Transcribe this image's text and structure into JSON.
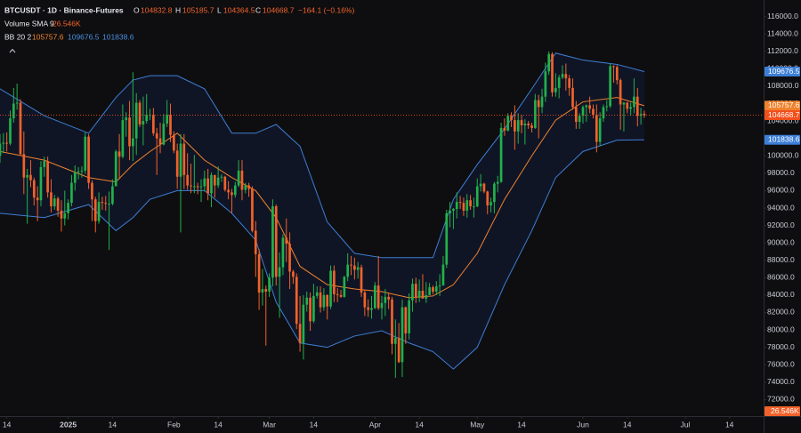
{
  "chart_data": {
    "type": "candlestick",
    "title": "BTCUSDT · 1D · Binance-Futures",
    "legend": {
      "o": "O",
      "h": "H",
      "l": "L",
      "c": "C",
      "change": "−164.1 (−0.16%)",
      "volume_label": "Volume SMA 9",
      "volume_sma": "26.546K",
      "bb_label": "BB 20 2"
    },
    "up_color": "#22b14c",
    "down_color": "#f2622b",
    "last_color": "#f24f1c",
    "x": [
      "2024-12-12",
      "2024-12-13",
      "2024-12-14",
      "2024-12-15",
      "2024-12-16",
      "2024-12-17",
      "2024-12-18",
      "2024-12-19",
      "2024-12-20",
      "2024-12-21",
      "2024-12-22",
      "2024-12-23",
      "2024-12-24",
      "2024-12-25",
      "2024-12-26",
      "2024-12-27",
      "2024-12-28",
      "2024-12-29",
      "2024-12-30",
      "2024-12-31",
      "2025-01-01",
      "2025-01-02",
      "2025-01-03",
      "2025-01-04",
      "2025-01-05",
      "2025-01-06",
      "2025-01-07",
      "2025-01-08",
      "2025-01-09",
      "2025-01-10",
      "2025-01-11",
      "2025-01-12",
      "2025-01-13",
      "2025-01-14",
      "2025-01-15",
      "2025-01-16",
      "2025-01-17",
      "2025-01-18",
      "2025-01-19",
      "2025-01-20",
      "2025-01-21",
      "2025-01-22",
      "2025-01-23",
      "2025-01-24",
      "2025-01-25",
      "2025-01-26",
      "2025-01-27",
      "2025-01-28",
      "2025-01-29",
      "2025-01-30",
      "2025-01-31",
      "2025-02-01",
      "2025-02-02",
      "2025-02-03",
      "2025-02-04",
      "2025-02-05",
      "2025-02-06",
      "2025-02-07",
      "2025-02-08",
      "2025-02-09",
      "2025-02-10",
      "2025-02-11",
      "2025-02-12",
      "2025-02-13",
      "2025-02-14",
      "2025-02-15",
      "2025-02-16",
      "2025-02-17",
      "2025-02-18",
      "2025-02-19",
      "2025-02-20",
      "2025-02-21",
      "2025-02-22",
      "2025-02-23",
      "2025-02-24",
      "2025-02-25",
      "2025-02-26",
      "2025-02-27",
      "2025-02-28",
      "2025-03-01",
      "2025-03-02",
      "2025-03-03",
      "2025-03-04",
      "2025-03-05",
      "2025-03-06",
      "2025-03-07",
      "2025-03-08",
      "2025-03-09",
      "2025-03-10",
      "2025-03-11",
      "2025-03-12",
      "2025-03-13",
      "2025-03-14",
      "2025-03-15",
      "2025-03-16",
      "2025-03-17",
      "2025-03-18",
      "2025-03-19",
      "2025-03-20",
      "2025-03-21",
      "2025-03-22",
      "2025-03-23",
      "2025-03-24",
      "2025-03-25",
      "2025-03-26",
      "2025-03-27",
      "2025-03-28",
      "2025-03-29",
      "2025-03-30",
      "2025-03-31",
      "2025-04-01",
      "2025-04-02",
      "2025-04-03",
      "2025-04-04",
      "2025-04-05",
      "2025-04-06",
      "2025-04-07",
      "2025-04-08",
      "2025-04-09",
      "2025-04-10",
      "2025-04-11",
      "2025-04-12",
      "2025-04-13",
      "2025-04-14",
      "2025-04-15",
      "2025-04-16",
      "2025-04-17",
      "2025-04-18",
      "2025-04-19",
      "2025-04-20",
      "2025-04-21",
      "2025-04-22",
      "2025-04-23",
      "2025-04-24",
      "2025-04-25",
      "2025-04-26",
      "2025-04-27",
      "2025-04-28",
      "2025-04-29",
      "2025-04-30",
      "2025-05-01",
      "2025-05-02",
      "2025-05-03",
      "2025-05-04",
      "2025-05-05",
      "2025-05-06",
      "2025-05-07",
      "2025-05-08",
      "2025-05-09",
      "2025-05-10",
      "2025-05-11",
      "2025-05-12",
      "2025-05-13",
      "2025-05-14",
      "2025-05-15",
      "2025-05-16",
      "2025-05-17",
      "2025-05-18",
      "2025-05-19",
      "2025-05-20",
      "2025-05-21",
      "2025-05-22",
      "2025-05-23",
      "2025-05-24",
      "2025-05-25",
      "2025-05-26",
      "2025-05-27",
      "2025-05-28",
      "2025-05-29",
      "2025-05-30",
      "2025-05-31",
      "2025-06-01",
      "2025-06-02",
      "2025-06-03",
      "2025-06-04",
      "2025-06-05",
      "2025-06-06",
      "2025-06-07",
      "2025-06-08",
      "2025-06-09",
      "2025-06-10",
      "2025-06-11",
      "2025-06-12",
      "2025-06-13",
      "2025-06-14",
      "2025-06-15",
      "2025-06-16",
      "2025-06-17",
      "2025-06-18",
      "2025-06-19"
    ],
    "open": [
      100000,
      101400,
      101500,
      101400,
      104300,
      106000,
      106100,
      100200,
      97500,
      97800,
      97200,
      95200,
      94900,
      98700,
      99400,
      95800,
      94200,
      95100,
      93700,
      92800,
      93400,
      94600,
      96900,
      98100,
      98200,
      98300,
      102200,
      96900,
      95000,
      92500,
      94700,
      94600,
      94500,
      94500,
      96500,
      100500,
      99900,
      104100,
      104400,
      101100,
      102000,
      106100,
      103600,
      104000,
      104700,
      104700,
      102600,
      102000,
      101300,
      103700,
      104700,
      102400,
      100600,
      97600,
      101400,
      97800,
      96600,
      96500,
      96500,
      96400,
      96500,
      97400,
      95700,
      97800,
      96600,
      97500,
      97600,
      96100,
      95800,
      95500,
      96600,
      98300,
      96100,
      96600,
      96200,
      91400,
      88700,
      84300,
      84700,
      84400,
      86000,
      94200,
      86100,
      87200,
      90600,
      89900,
      86700,
      86100,
      80700,
      78500,
      82900,
      83700,
      81000,
      83900,
      84300,
      82600,
      84000,
      82700,
      86800,
      84100,
      84000,
      83800,
      86100,
      87500,
      87400,
      86900,
      87200,
      84300,
      82600,
      82300,
      82500,
      85100,
      82500,
      83100,
      83800,
      83500,
      78400,
      79100,
      76300,
      82600,
      79600,
      83400,
      85300,
      83700,
      84500,
      83600,
      84000,
      84900,
      84400,
      85000,
      85100,
      87500,
      93400,
      93700,
      93900,
      94700,
      94600,
      93700,
      94900,
      94200,
      94200,
      96500,
      96800,
      95900,
      94300,
      94700,
      96800,
      97000,
      103200,
      102900,
      104600,
      104100,
      102800,
      104100,
      103500,
      103700,
      103500,
      103200,
      106400,
      105600,
      106800,
      109700,
      111700,
      107300,
      107800,
      109000,
      109400,
      108900,
      107800,
      105600,
      103900,
      104600,
      105600,
      105800,
      105400,
      104700,
      101600,
      104300,
      105600,
      105700,
      110300,
      110200,
      108700,
      105900,
      106100,
      105400,
      105600,
      106800,
      104600,
      104832.8
    ],
    "high": [
      102500,
      102600,
      102700,
      105200,
      107800,
      108300,
      106500,
      102800,
      98500,
      99500,
      97500,
      96500,
      99400,
      99900,
      99900,
      97300,
      95500,
      95300,
      94900,
      96000,
      95000,
      97800,
      98900,
      98700,
      98800,
      102700,
      102500,
      97200,
      95300,
      95800,
      95300,
      95400,
      95900,
      97300,
      100700,
      102500,
      105900,
      105000,
      106300,
      109600,
      107200,
      106400,
      106800,
      107100,
      105400,
      105500,
      103200,
      103800,
      104800,
      106400,
      106000,
      102800,
      101400,
      102500,
      102500,
      100300,
      99100,
      100100,
      96900,
      97300,
      98300,
      98500,
      98100,
      97800,
      98800,
      97900,
      97700,
      97100,
      96200,
      97000,
      99500,
      99500,
      96900,
      96900,
      96500,
      92500,
      89300,
      87000,
      85100,
      86500,
      95000,
      94400,
      88900,
      91000,
      92800,
      91200,
      86900,
      86500,
      83900,
      84000,
      84400,
      84300,
      85300,
      85000,
      85000,
      84800,
      84100,
      87400,
      87400,
      84800,
      84600,
      86200,
      88800,
      88500,
      88300,
      87800,
      87500,
      84600,
      83500,
      83900,
      85500,
      88500,
      83900,
      84700,
      84200,
      83800,
      81200,
      80800,
      83500,
      82700,
      84200,
      85900,
      86000,
      85800,
      86400,
      85500,
      85400,
      85100,
      85600,
      86400,
      88500,
      93800,
      94700,
      94000,
      95800,
      95400,
      95200,
      95600,
      95500,
      95200,
      97400,
      97900,
      96900,
      96000,
      95200,
      97000,
      97700,
      103800,
      104300,
      104900,
      105000,
      105800,
      104900,
      104700,
      104200,
      104000,
      103800,
      107100,
      107000,
      107700,
      110700,
      112000,
      111900,
      109500,
      109300,
      110400,
      110600,
      109300,
      108900,
      106300,
      104900,
      105800,
      105900,
      106800,
      105900,
      105900,
      105000,
      105900,
      106400,
      110600,
      110400,
      110400,
      108900,
      106200,
      106200,
      106100,
      108900,
      107800,
      105500,
      105185.7
    ],
    "low": [
      99200,
      100300,
      100500,
      101200,
      103800,
      105300,
      100000,
      95600,
      92200,
      96400,
      94300,
      92500,
      94200,
      97600,
      95200,
      93500,
      93800,
      93000,
      91300,
      92000,
      92700,
      94200,
      96000,
      97300,
      97500,
      97900,
      96200,
      92500,
      91200,
      92200,
      93800,
      93700,
      89200,
      94300,
      96500,
      97300,
      99700,
      102200,
      99500,
      99400,
      100100,
      103300,
      101200,
      103700,
      104100,
      102300,
      97800,
      100300,
      101200,
      103300,
      101600,
      100300,
      96200,
      91200,
      96200,
      96100,
      95700,
      95700,
      95600,
      94700,
      95900,
      94900,
      94100,
      95200,
      96300,
      97000,
      95900,
      95000,
      93400,
      95200,
      96400,
      94900,
      95700,
      95300,
      91200,
      86100,
      82300,
      82800,
      78200,
      83800,
      85000,
      85100,
      81400,
      86300,
      87800,
      84700,
      85300,
      80100,
      77500,
      76600,
      82100,
      79900,
      80800,
      83600,
      82000,
      82200,
      81200,
      82400,
      83200,
      83200,
      83700,
      83700,
      85600,
      86300,
      85800,
      85900,
      83800,
      81600,
      81500,
      81300,
      82400,
      82300,
      81200,
      81600,
      82400,
      77200,
      74500,
      76200,
      74600,
      78400,
      78900,
      82100,
      83100,
      83200,
      83600,
      83100,
      84000,
      84100,
      84000,
      83900,
      85100,
      87100,
      91800,
      91600,
      92800,
      93900,
      93100,
      92900,
      93800,
      92900,
      94100,
      95900,
      95700,
      93300,
      93500,
      93400,
      95800,
      96900,
      102300,
      102800,
      103300,
      100700,
      101400,
      102600,
      101300,
      103100,
      102700,
      103100,
      102000,
      104900,
      106200,
      109300,
      106800,
      106800,
      106600,
      108800,
      107500,
      106900,
      105300,
      103100,
      103100,
      103700,
      103900,
      104900,
      104300,
      100400,
      101100,
      103900,
      105100,
      105500,
      108400,
      108200,
      103000,
      102800,
      104900,
      104600,
      104900,
      103400,
      103600,
      104364.5
    ],
    "close": [
      101400,
      101500,
      101400,
      104300,
      106000,
      106100,
      100200,
      97500,
      97800,
      97200,
      95200,
      94900,
      98700,
      99400,
      95800,
      94200,
      95100,
      93700,
      92800,
      93400,
      94600,
      96900,
      98100,
      98200,
      98300,
      102200,
      96900,
      95000,
      92500,
      94700,
      94600,
      94500,
      94500,
      96500,
      100500,
      99900,
      104100,
      104400,
      101100,
      102000,
      106100,
      103600,
      104000,
      104700,
      104700,
      102600,
      102000,
      101300,
      103700,
      104700,
      102400,
      100600,
      97600,
      101400,
      97800,
      96600,
      96500,
      96500,
      96400,
      96500,
      97400,
      95700,
      97800,
      96600,
      97500,
      97600,
      96100,
      95800,
      95500,
      96600,
      98300,
      96100,
      96600,
      96200,
      91400,
      88700,
      84300,
      84700,
      84400,
      86000,
      94200,
      86100,
      87200,
      90600,
      89900,
      86700,
      86100,
      80700,
      78500,
      82900,
      83700,
      81000,
      83900,
      84300,
      82600,
      84000,
      82700,
      86800,
      84100,
      84000,
      83800,
      86100,
      87500,
      87400,
      86900,
      87200,
      84300,
      82600,
      82300,
      82500,
      85100,
      82500,
      83100,
      83800,
      83500,
      78400,
      79100,
      76300,
      82600,
      79600,
      83400,
      85300,
      83700,
      84500,
      83600,
      84000,
      84900,
      84400,
      85000,
      85100,
      87500,
      93400,
      93700,
      93900,
      94700,
      94600,
      93700,
      94900,
      94200,
      94200,
      96500,
      96800,
      95900,
      94300,
      94700,
      96800,
      97000,
      103200,
      102900,
      104600,
      104100,
      102800,
      104100,
      103500,
      103700,
      103500,
      103200,
      106400,
      105600,
      106800,
      109700,
      111700,
      107300,
      107800,
      109000,
      109400,
      108900,
      107800,
      105600,
      103900,
      104600,
      105600,
      105800,
      105400,
      104700,
      101600,
      104300,
      105600,
      105700,
      110300,
      110200,
      108700,
      105900,
      106100,
      105400,
      105600,
      106800,
      104600,
      104800,
      104668.7
    ],
    "bands": {
      "x": [
        "2024-12-12",
        "2024-12-25",
        "2025-01-07",
        "2025-01-15",
        "2025-01-20",
        "2025-01-25",
        "2025-02-02",
        "2025-02-10",
        "2025-02-18",
        "2025-02-25",
        "2025-03-03",
        "2025-03-10",
        "2025-03-18",
        "2025-03-26",
        "2025-04-03",
        "2025-04-11",
        "2025-04-18",
        "2025-04-24",
        "2025-05-01",
        "2025-05-09",
        "2025-05-17",
        "2025-05-24",
        "2025-06-01",
        "2025-06-11",
        "2025-06-19"
      ],
      "fill": "rgba(41,98,255,0.09)",
      "series": [
        {
          "color": "#3d7fd6",
          "values": [
            107700,
            104600,
            102600,
            106700,
            108700,
            109200,
            109200,
            107700,
            102600,
            102600,
            103600,
            101100,
            92400,
            88800,
            88300,
            88300,
            88300,
            95000,
            99000,
            103100,
            107700,
            111800,
            111000,
            110500,
            109676.5
          ]
        },
        {
          "color": "#f0822d",
          "values": [
            100500,
            99500,
            97500,
            97000,
            99000,
            100500,
            102600,
            99500,
            97500,
            96000,
            92900,
            87300,
            85200,
            84700,
            84400,
            83700,
            83900,
            85200,
            88800,
            95000,
            100000,
            104100,
            106200,
            106700,
            105757.6
          ]
        },
        {
          "color": "#3d7fd6",
          "values": [
            93400,
            92900,
            94400,
            91400,
            92900,
            95000,
            96000,
            96000,
            93400,
            90300,
            83200,
            78500,
            78000,
            79300,
            79900,
            78500,
            77500,
            75500,
            78000,
            85200,
            91400,
            97500,
            100500,
            101800,
            101838.6
          ]
        }
      ]
    },
    "volume_color": "#f2622b",
    "ylim": [
      70100,
      117900
    ],
    "yticks": [
      {
        "value": 116000,
        "label": "116000.0"
      },
      {
        "value": 114000,
        "label": "114000.0"
      },
      {
        "value": 112000,
        "label": "112000.0"
      },
      {
        "value": 110000,
        "label": "110000.0"
      },
      {
        "value": 108000,
        "label": "108000.0"
      },
      {
        "value": 106000,
        "label": "106000.0"
      },
      {
        "value": 104000,
        "label": "104000.0"
      },
      {
        "value": 102000,
        "label": "102000.0"
      },
      {
        "value": 100000,
        "label": "100000.0"
      },
      {
        "value": 98000,
        "label": "98000.0"
      },
      {
        "value": 96000,
        "label": "96000.0"
      },
      {
        "value": 94000,
        "label": "94000.0"
      },
      {
        "value": 92000,
        "label": "92000.0"
      },
      {
        "value": 90000,
        "label": "90000.0"
      },
      {
        "value": 88000,
        "label": "88000.0"
      },
      {
        "value": 86000,
        "label": "86000.0"
      },
      {
        "value": 84000,
        "label": "84000.0"
      },
      {
        "value": 82000,
        "label": "82000.0"
      },
      {
        "value": 80000,
        "label": "80000.0"
      },
      {
        "value": 78000,
        "label": "78000.0"
      },
      {
        "value": 76000,
        "label": "76000.0"
      },
      {
        "value": 74000,
        "label": "74000.0"
      },
      {
        "value": 72000,
        "label": "72000.0"
      }
    ],
    "xlim": [
      "2024-12-12",
      "2025-07-24"
    ],
    "xticks": [
      {
        "value": "2024-12-14",
        "label": "14"
      },
      {
        "value": "2025-01-01",
        "label": "2025"
      },
      {
        "value": "2025-01-14",
        "label": "14"
      },
      {
        "value": "2025-02-01",
        "label": "Feb"
      },
      {
        "value": "2025-02-14",
        "label": "14"
      },
      {
        "value": "2025-03-01",
        "label": "Mar"
      },
      {
        "value": "2025-03-14",
        "label": "14"
      },
      {
        "value": "2025-04-01",
        "label": "Apr"
      },
      {
        "value": "2025-04-14",
        "label": "14"
      },
      {
        "value": "2025-05-01",
        "label": "May"
      },
      {
        "value": "2025-05-14",
        "label": "14"
      },
      {
        "value": "2025-06-01",
        "label": "Jun"
      },
      {
        "value": "2025-06-14",
        "label": "14"
      },
      {
        "value": "2025-07-01",
        "label": "Jul"
      },
      {
        "value": "2025-07-14",
        "label": "14"
      }
    ]
  }
}
